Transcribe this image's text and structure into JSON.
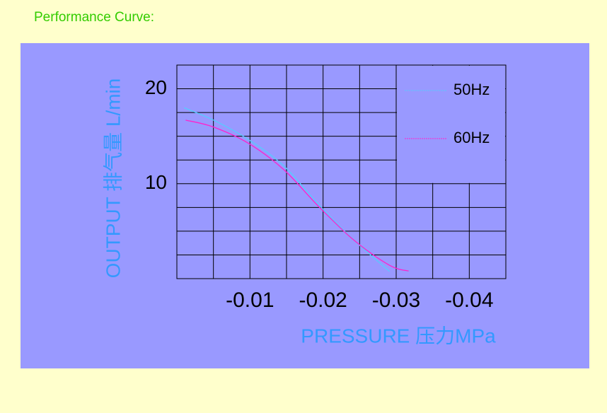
{
  "header": {
    "title": "Performance Curve:"
  },
  "chart_data": {
    "type": "line",
    "x_label": "PRESSURE 压力MPa",
    "y_label": "OUTPUT 排气量 L/min",
    "xlim": [
      0,
      -0.045
    ],
    "ylim": [
      0,
      22.5
    ],
    "xticks": [
      -0.01,
      -0.02,
      -0.03,
      -0.04
    ],
    "yticks": [
      10,
      20
    ],
    "xgrid": [
      -0.005,
      -0.01,
      -0.015,
      -0.02,
      -0.025,
      -0.03,
      -0.035,
      -0.04
    ],
    "ygrid": [
      2.5,
      5,
      7.5,
      10,
      12.5,
      15,
      17.5,
      20
    ],
    "grid": true,
    "legend": "upper right",
    "series": [
      {
        "name": "50Hz",
        "color": "#55ccff",
        "x": [
          -0.001,
          -0.005,
          -0.0097,
          -0.0146,
          -0.0194,
          -0.0243,
          -0.0291
        ],
        "values": [
          18.0,
          16.7,
          14.7,
          11.9,
          7.8,
          4.0,
          0.75
        ]
      },
      {
        "name": "60Hz",
        "color": "#ff22cc",
        "x": [
          -0.0012,
          -0.0049,
          -0.0097,
          -0.0146,
          -0.0194,
          -0.0243,
          -0.0291,
          -0.0317
        ],
        "values": [
          16.7,
          16.0,
          14.3,
          11.5,
          7.6,
          4.0,
          1.4,
          0.8
        ]
      }
    ]
  }
}
